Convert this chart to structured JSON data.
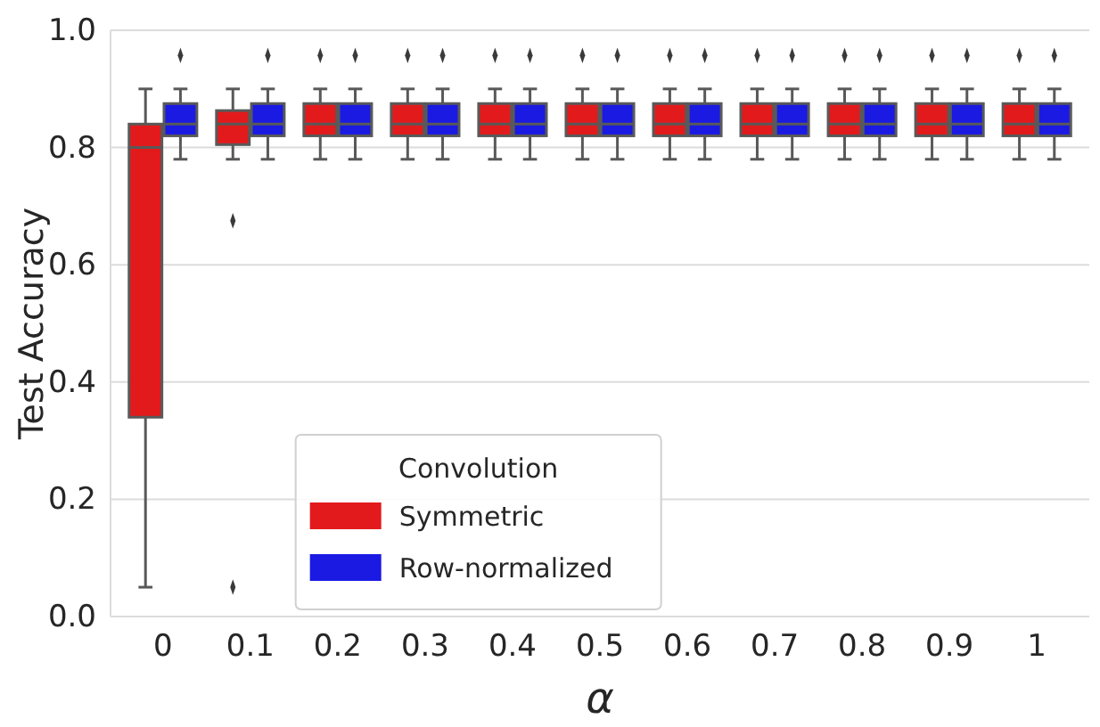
{
  "chart_data": {
    "type": "box",
    "xlabel": "α",
    "ylabel": "Test Accuracy",
    "legend_title": "Convolution",
    "legend": "bottom",
    "grid": "y",
    "categories": [
      "0",
      "0.1",
      "0.2",
      "0.3",
      "0.4",
      "0.5",
      "0.6",
      "0.7",
      "0.8",
      "0.9",
      "1"
    ],
    "ylim": [
      0,
      1
    ],
    "yticks": [
      {
        "value": 0,
        "label": "0.0"
      },
      {
        "value": 0.2,
        "label": "0.2"
      },
      {
        "value": 0.4,
        "label": "0.4"
      },
      {
        "value": 0.6,
        "label": "0.6"
      },
      {
        "value": 0.8,
        "label": "0.8"
      },
      {
        "value": 1,
        "label": "1.0"
      }
    ],
    "series": [
      {
        "name": "Symmetric",
        "color": "#e31a1c",
        "boxes": [
          {
            "low": 0.05,
            "q1": 0.34,
            "median": 0.8,
            "q3": 0.84,
            "high": 0.9
          },
          {
            "low": 0.78,
            "q1": 0.805,
            "median": 0.84,
            "q3": 0.863,
            "high": 0.9,
            "outliers": [
              0.675,
              0.05
            ]
          },
          {
            "low": 0.78,
            "q1": 0.82,
            "median": 0.84,
            "q3": 0.875,
            "high": 0.9,
            "outliers": [
              0.957
            ]
          },
          {
            "low": 0.78,
            "q1": 0.82,
            "median": 0.84,
            "q3": 0.875,
            "high": 0.9,
            "outliers": [
              0.957
            ]
          },
          {
            "low": 0.78,
            "q1": 0.82,
            "median": 0.84,
            "q3": 0.875,
            "high": 0.9,
            "outliers": [
              0.957
            ]
          },
          {
            "low": 0.78,
            "q1": 0.82,
            "median": 0.84,
            "q3": 0.875,
            "high": 0.9,
            "outliers": [
              0.957
            ]
          },
          {
            "low": 0.78,
            "q1": 0.82,
            "median": 0.84,
            "q3": 0.875,
            "high": 0.9,
            "outliers": [
              0.957
            ]
          },
          {
            "low": 0.78,
            "q1": 0.82,
            "median": 0.84,
            "q3": 0.875,
            "high": 0.9,
            "outliers": [
              0.957
            ]
          },
          {
            "low": 0.78,
            "q1": 0.82,
            "median": 0.84,
            "q3": 0.875,
            "high": 0.9,
            "outliers": [
              0.957
            ]
          },
          {
            "low": 0.78,
            "q1": 0.82,
            "median": 0.84,
            "q3": 0.875,
            "high": 0.9,
            "outliers": [
              0.957
            ]
          },
          {
            "low": 0.78,
            "q1": 0.82,
            "median": 0.84,
            "q3": 0.875,
            "high": 0.9,
            "outliers": [
              0.957
            ]
          }
        ]
      },
      {
        "name": "Row-normalized",
        "color": "#1a1ae3",
        "boxes": [
          {
            "low": 0.78,
            "q1": 0.82,
            "median": 0.84,
            "q3": 0.875,
            "high": 0.9,
            "outliers": [
              0.957
            ]
          },
          {
            "low": 0.78,
            "q1": 0.82,
            "median": 0.84,
            "q3": 0.875,
            "high": 0.9,
            "outliers": [
              0.957
            ]
          },
          {
            "low": 0.78,
            "q1": 0.82,
            "median": 0.84,
            "q3": 0.875,
            "high": 0.9,
            "outliers": [
              0.957
            ]
          },
          {
            "low": 0.78,
            "q1": 0.82,
            "median": 0.84,
            "q3": 0.875,
            "high": 0.9,
            "outliers": [
              0.957
            ]
          },
          {
            "low": 0.78,
            "q1": 0.82,
            "median": 0.84,
            "q3": 0.875,
            "high": 0.9,
            "outliers": [
              0.957
            ]
          },
          {
            "low": 0.78,
            "q1": 0.82,
            "median": 0.84,
            "q3": 0.875,
            "high": 0.9,
            "outliers": [
              0.957
            ]
          },
          {
            "low": 0.78,
            "q1": 0.82,
            "median": 0.84,
            "q3": 0.875,
            "high": 0.9,
            "outliers": [
              0.957
            ]
          },
          {
            "low": 0.78,
            "q1": 0.82,
            "median": 0.84,
            "q3": 0.875,
            "high": 0.9,
            "outliers": [
              0.957
            ]
          },
          {
            "low": 0.78,
            "q1": 0.82,
            "median": 0.84,
            "q3": 0.875,
            "high": 0.9,
            "outliers": [
              0.957
            ]
          },
          {
            "low": 0.78,
            "q1": 0.82,
            "median": 0.84,
            "q3": 0.875,
            "high": 0.9,
            "outliers": [
              0.957
            ]
          },
          {
            "low": 0.78,
            "q1": 0.82,
            "median": 0.84,
            "q3": 0.875,
            "high": 0.9,
            "outliers": [
              0.957
            ]
          }
        ]
      }
    ]
  }
}
